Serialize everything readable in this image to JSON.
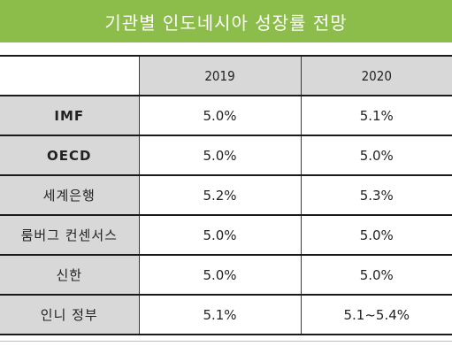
{
  "title": "기관별 인도네시아 성장률 전망",
  "columns": [
    "2019",
    "2020"
  ],
  "rows": [
    {
      "label": "IMF",
      "v2019": "5.0%",
      "v2020": "5.1%"
    },
    {
      "label": "OECD",
      "v2019": "5.0%",
      "v2020": "5.0%"
    },
    {
      "label": "세계은행",
      "v2019": "5.2%",
      "v2020": "5.3%"
    },
    {
      "label": "룸버그 컨센서스",
      "v2019": "5.0%",
      "v2020": "5.0%"
    },
    {
      "label": "신한",
      "v2019": "5.0%",
      "v2020": "5.0%"
    },
    {
      "label": "인니 정부",
      "v2019": "5.1%",
      "v2020": "5.1~5.4%"
    }
  ],
  "colors": {
    "title_bar": "#8cbd4a",
    "label_fill": "#d8d8d8"
  }
}
